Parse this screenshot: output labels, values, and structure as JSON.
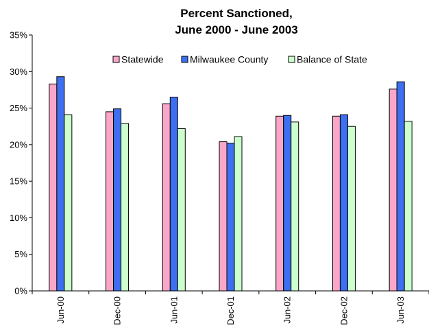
{
  "chart_data": {
    "type": "bar",
    "title": "Percent Sanctioned,",
    "subtitle": "June 2000 - June 2003",
    "xlabel": "",
    "ylabel": "",
    "categories": [
      "Jun-00",
      "Dec-00",
      "Jun-01",
      "Dec-01",
      "Jun-02",
      "Dec-02",
      "Jun-03"
    ],
    "series": [
      {
        "name": "Statewide",
        "color": "#f9a6c9",
        "values": [
          28.3,
          24.5,
          25.6,
          20.4,
          23.9,
          23.9,
          27.6
        ]
      },
      {
        "name": "Milwaukee County",
        "color": "#3d6ff0",
        "values": [
          29.3,
          24.9,
          26.5,
          20.2,
          24.0,
          24.1,
          28.6
        ]
      },
      {
        "name": "Balance of State",
        "color": "#ccffcc",
        "values": [
          24.1,
          22.9,
          22.2,
          21.1,
          23.1,
          22.5,
          23.2
        ]
      }
    ],
    "ylim": [
      0,
      35
    ],
    "yticks": [
      "0%",
      "5%",
      "10%",
      "15%",
      "20%",
      "25%",
      "30%",
      "35%"
    ],
    "ytick_values": [
      0,
      5,
      10,
      15,
      20,
      25,
      30,
      35
    ],
    "grid": false,
    "legend_position": "top-right"
  }
}
